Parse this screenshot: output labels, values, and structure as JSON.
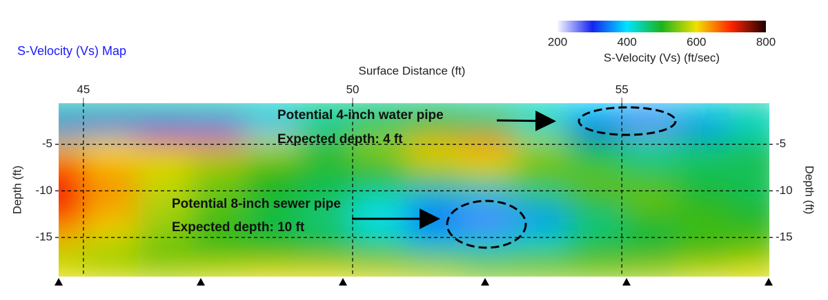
{
  "chart_data": {
    "type": "heatmap",
    "title": "S-Velocity (Vs) Map",
    "xlabel": "Surface Distance (ft)",
    "ylabel": "Depth (ft)",
    "xlim": [
      44.54,
      57.74
    ],
    "ylim": [
      -19.2,
      -0.6
    ],
    "xticks": [
      45,
      50,
      55
    ],
    "yticks": [
      -5,
      -10,
      -15
    ],
    "grid": true,
    "x": [
      44.5,
      45.5,
      46.5,
      47.5,
      48.5,
      49.5,
      50.5,
      51.5,
      52.5,
      53.5,
      54.5,
      55.5,
      56.5,
      57.5
    ],
    "y": [
      -1,
      -3,
      -5,
      -7,
      -9,
      -11,
      -13,
      -15,
      -17,
      -19
    ],
    "z": [
      [
        440,
        440,
        440,
        440,
        430,
        450,
        450,
        450,
        440,
        430,
        400,
        380,
        420,
        440
      ],
      [
        320,
        300,
        310,
        330,
        380,
        440,
        470,
        500,
        480,
        420,
        300,
        260,
        350,
        420
      ],
      [
        580,
        600,
        640,
        650,
        580,
        520,
        560,
        620,
        650,
        560,
        470,
        440,
        460,
        470
      ],
      [
        680,
        620,
        590,
        560,
        520,
        490,
        520,
        580,
        600,
        540,
        480,
        460,
        470,
        480
      ],
      [
        700,
        640,
        580,
        540,
        500,
        480,
        480,
        500,
        520,
        520,
        540,
        520,
        480,
        470
      ],
      [
        710,
        640,
        570,
        530,
        490,
        470,
        430,
        380,
        380,
        440,
        500,
        540,
        500,
        480
      ],
      [
        690,
        620,
        560,
        520,
        480,
        460,
        400,
        300,
        270,
        340,
        450,
        500,
        520,
        500
      ],
      [
        620,
        590,
        550,
        510,
        490,
        470,
        440,
        380,
        380,
        420,
        470,
        480,
        510,
        520
      ],
      [
        560,
        540,
        520,
        520,
        510,
        500,
        490,
        480,
        470,
        480,
        490,
        500,
        520,
        540
      ],
      [
        600,
        590,
        580,
        590,
        600,
        600,
        590,
        580,
        560,
        560,
        560,
        570,
        590,
        600
      ]
    ],
    "colorbar": {
      "label": "S-Velocity (Vs) (ft/sec)",
      "lim": [
        200,
        800
      ],
      "ticks": [
        200,
        400,
        600,
        800
      ],
      "colors": [
        "#f6f6ff",
        "#1424f0",
        "#00e4ff",
        "#1cb41c",
        "#f2e000",
        "#ff2400",
        "#1e0000"
      ]
    },
    "annotations": [
      "Potential 4-inch water pipe",
      "Expected depth: 4 ft",
      "Potential 8-inch sewer pipe",
      "Expected depth: 10 ft"
    ]
  }
}
